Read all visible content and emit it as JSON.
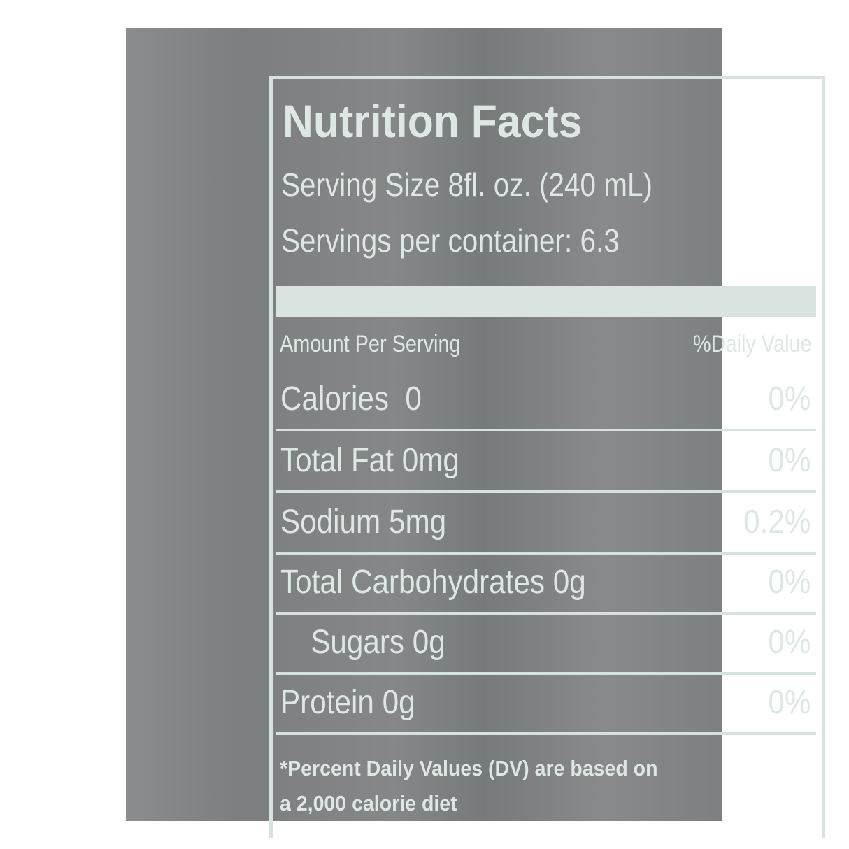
{
  "label": {
    "title": "Nutrition Facts",
    "serving_size": "Serving Size 8fl. oz. (240 mL)",
    "servings_per_container": "Servings per container: 6.3",
    "amount_header": "Amount Per Serving",
    "dv_header": "%Daily Value",
    "rows": [
      {
        "name": "Calories  0",
        "dv": "0%"
      },
      {
        "name": "Total Fat 0mg",
        "dv": "0%"
      },
      {
        "name": "Sodium 5mg",
        "dv": "0.2%"
      },
      {
        "name": "Total Carbohydrates 0g",
        "dv": "0%"
      },
      {
        "name": "   Sugars 0g",
        "dv": "0%"
      },
      {
        "name": "Protein 0g",
        "dv": "0%"
      }
    ],
    "footnote_line1": "*Percent Daily Values (DV) are based on",
    "footnote_line2": "a 2,000 calorie diet"
  },
  "colors": {
    "background": "#808283",
    "text": "#dde8e4",
    "handwriting": "#4a86b8"
  }
}
